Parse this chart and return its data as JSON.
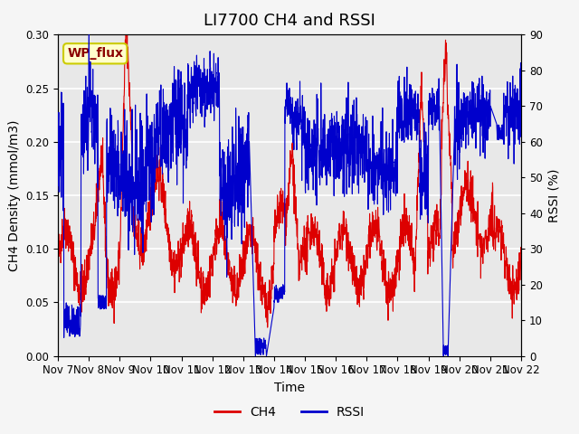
{
  "title": "LI7700 CH4 and RSSI",
  "xlabel": "Time",
  "ylabel_left": "CH4 Density (mmol/m3)",
  "ylabel_right": "RSSI (%)",
  "annotation": "WP_flux",
  "ylim_left": [
    0.0,
    0.3
  ],
  "ylim_right": [
    0,
    90
  ],
  "yticks_left": [
    0.0,
    0.05,
    0.1,
    0.15,
    0.2,
    0.25,
    0.3
  ],
  "yticks_right": [
    0,
    10,
    20,
    30,
    40,
    50,
    60,
    70,
    80,
    90
  ],
  "xtick_labels": [
    "Nov 7",
    "Nov 8",
    "Nov 9",
    "Nov 10",
    "Nov 11",
    "Nov 12",
    "Nov 13",
    "Nov 14",
    "Nov 15",
    "Nov 16",
    "Nov 17",
    "Nov 18",
    "Nov 19",
    "Nov 20",
    "Nov 21",
    "Nov 22"
  ],
  "ch4_color": "#dd0000",
  "rssi_color": "#0000cc",
  "bg_inner": "#e8e8e8",
  "bg_outer": "#f5f5f5",
  "grid_color": "#ffffff",
  "legend_ch4": "CH4",
  "legend_rssi": "RSSI",
  "title_fontsize": 13,
  "axis_label_fontsize": 10,
  "tick_fontsize": 8.5,
  "legend_fontsize": 10
}
